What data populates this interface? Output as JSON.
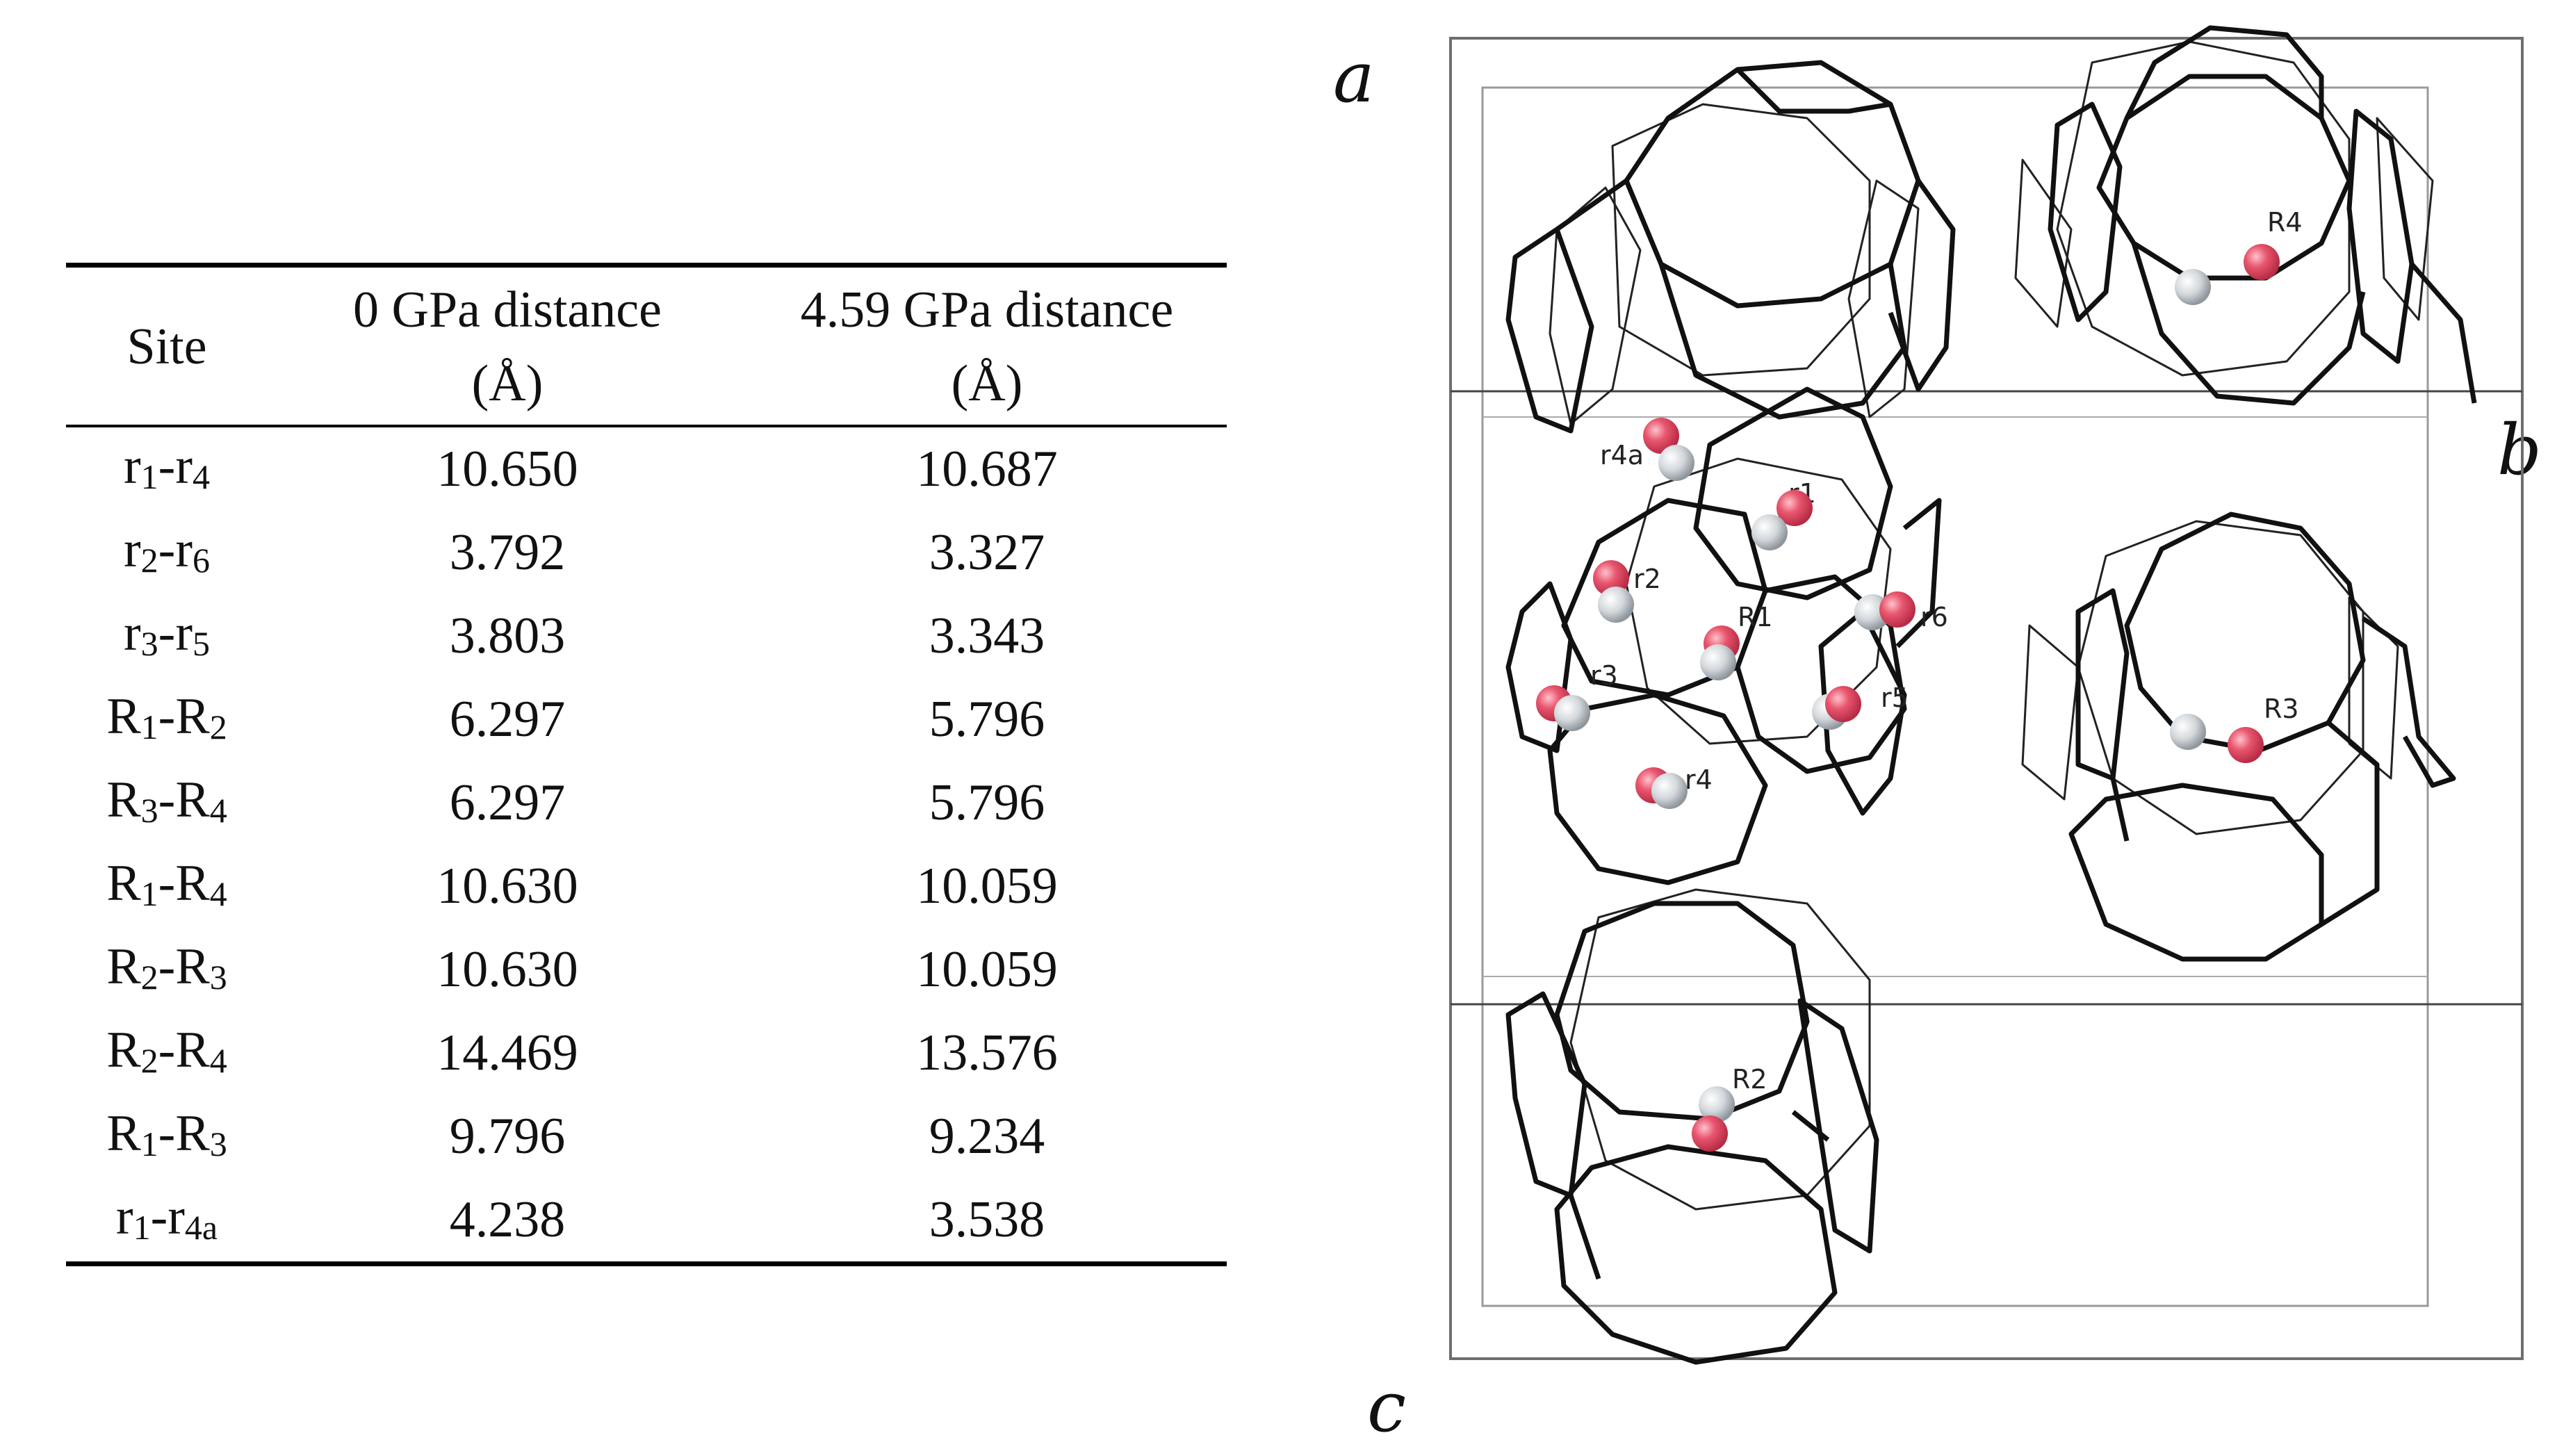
{
  "table": {
    "headers": {
      "site": "Site",
      "col1_line1": "0 GPa distance",
      "col1_line2": "(Å)",
      "col2_line1": "4.59 GPa distance",
      "col2_line2": "(Å)"
    },
    "rows": [
      {
        "a": "r",
        "a_sub": "1",
        "sep": "-",
        "b": "r",
        "b_sub": "4",
        "v0": "10.650",
        "v1": "10.687"
      },
      {
        "a": "r",
        "a_sub": "2",
        "sep": "-",
        "b": "r",
        "b_sub": "6",
        "v0": "3.792",
        "v1": "3.327"
      },
      {
        "a": "r",
        "a_sub": "3",
        "sep": "-",
        "b": "r",
        "b_sub": "5",
        "v0": "3.803",
        "v1": "3.343"
      },
      {
        "a": "R",
        "a_sub": "1",
        "sep": "-",
        "b": "R",
        "b_sub": "2",
        "v0": "6.297",
        "v1": "5.796"
      },
      {
        "a": "R",
        "a_sub": "3",
        "sep": "-",
        "b": "R",
        "b_sub": "4",
        "v0": "6.297",
        "v1": "5.796"
      },
      {
        "a": "R",
        "a_sub": "1",
        "sep": "-",
        "b": "R",
        "b_sub": "4",
        "v0": "10.630",
        "v1": "10.059"
      },
      {
        "a": "R",
        "a_sub": "2",
        "sep": "-",
        "b": "R",
        "b_sub": "3",
        "v0": "10.630",
        "v1": "10.059"
      },
      {
        "a": "R",
        "a_sub": "2",
        "sep": "-",
        "b": "R",
        "b_sub": "4",
        "v0": "14.469",
        "v1": "13.576"
      },
      {
        "a": "R",
        "a_sub": "1",
        "sep": "-",
        "b": "R",
        "b_sub": "3",
        "v0": "9.796",
        "v1": "9.234"
      },
      {
        "a": "r",
        "a_sub": "1",
        "sep": "-",
        "b": "r",
        "b_sub": "4a",
        "v0": "4.238",
        "v1": "3.538"
      }
    ]
  },
  "figure": {
    "axes": {
      "a": "a",
      "b": "b",
      "c": "c"
    },
    "site_labels": {
      "R1": "R1",
      "R2": "R2",
      "R3": "R3",
      "R4": "R4",
      "r1": "r1",
      "r2": "r2",
      "r3": "r3",
      "r4": "r4",
      "r4a": "r4a",
      "r5": "r5",
      "r6": "r6"
    },
    "colors": {
      "oxygen": "#e8566e",
      "hydrogen": "#cfd4d8",
      "framework": "#111111",
      "cell": "#6e6e6e"
    }
  }
}
